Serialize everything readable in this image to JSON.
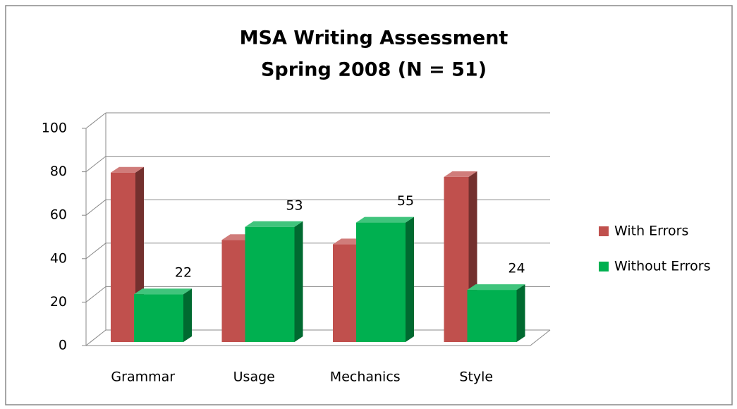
{
  "chart_data": {
    "type": "bar3d",
    "title": [
      "MSA Writing Assessment",
      "Spring 2008 (N = 51)"
    ],
    "categories": [
      "Grammar",
      "Usage",
      "Mechanics",
      "Style"
    ],
    "series": [
      {
        "name": "With Errors",
        "color": "#c0504d",
        "values": [
          78,
          47,
          45,
          76
        ],
        "show_labels": false
      },
      {
        "name": "Without Errors",
        "color": "#00b050",
        "values": [
          22,
          53,
          55,
          24
        ],
        "show_labels": true
      }
    ],
    "ylim": [
      0,
      100
    ],
    "yticks": [
      0,
      20,
      40,
      60,
      80,
      100
    ],
    "grid": true,
    "legend": "right"
  }
}
